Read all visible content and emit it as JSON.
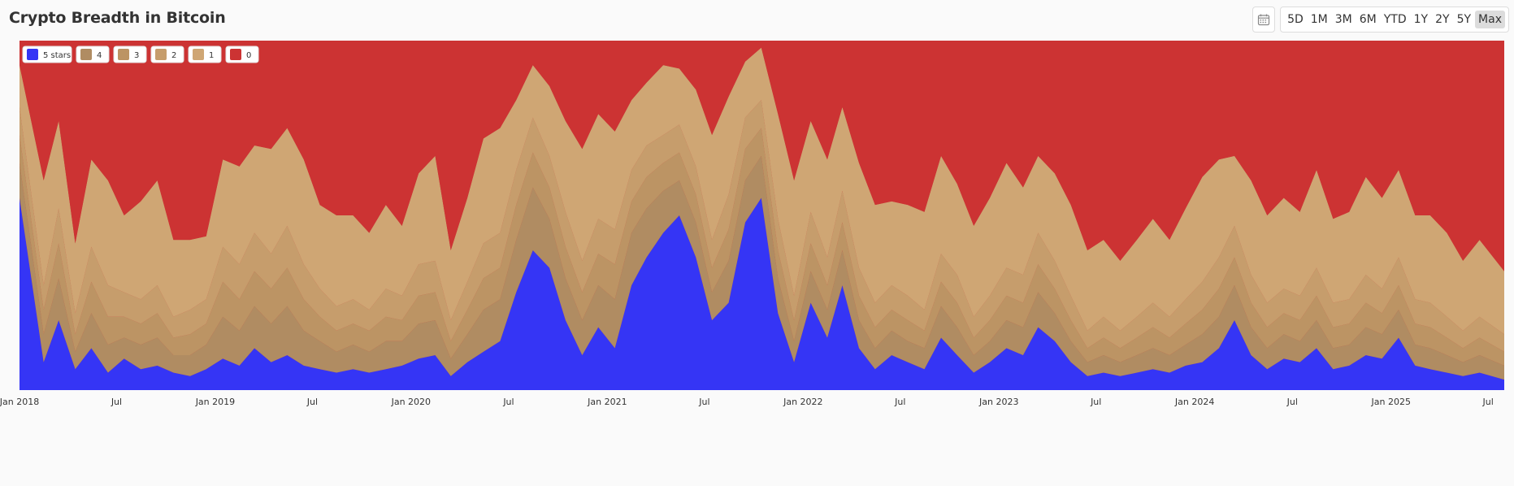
{
  "page": {
    "title": "Crypto Breadth in Bitcoin"
  },
  "toolbar": {
    "ranges": [
      "5D",
      "1M",
      "3M",
      "6M",
      "YTD",
      "1Y",
      "2Y",
      "5Y",
      "Max"
    ],
    "active": "Max",
    "icon": "calendar-icon"
  },
  "chart_data": {
    "type": "area",
    "stacked": true,
    "normalized": true,
    "title": "",
    "xlabel": "",
    "ylabel": "",
    "ylim": [
      0,
      100
    ],
    "xlim": [
      "2018-01-01",
      "2025-07-31"
    ],
    "grid": false,
    "legend_position": "top-left",
    "x_ticks": [
      {
        "date": "2018-01-01",
        "label": "Jan 2018"
      },
      {
        "date": "2018-07-01",
        "label": "Jul"
      },
      {
        "date": "2019-01-01",
        "label": "Jan 2019"
      },
      {
        "date": "2019-07-01",
        "label": "Jul"
      },
      {
        "date": "2020-01-01",
        "label": "Jan 2020"
      },
      {
        "date": "2020-07-01",
        "label": "Jul"
      },
      {
        "date": "2021-01-01",
        "label": "Jan 2021"
      },
      {
        "date": "2021-07-01",
        "label": "Jul"
      },
      {
        "date": "2022-01-01",
        "label": "Jan 2022"
      },
      {
        "date": "2022-07-01",
        "label": "Jul"
      },
      {
        "date": "2023-01-01",
        "label": "Jan 2023"
      },
      {
        "date": "2023-07-01",
        "label": "Jul"
      },
      {
        "date": "2024-01-01",
        "label": "Jan 2024"
      },
      {
        "date": "2024-07-01",
        "label": "Jul"
      },
      {
        "date": "2025-01-01",
        "label": "Jan 2025"
      },
      {
        "date": "2025-07-01",
        "label": "Jul"
      }
    ],
    "colors": {
      "5 stars": "#3535f5",
      "4": "#b08c62",
      "3": "#bc9464",
      "2": "#c69d6c",
      "1": "#cfa674",
      "0": "#cc3333"
    },
    "x": [
      "2018-01",
      "2018-02",
      "2018-03",
      "2018-04",
      "2018-05",
      "2018-06",
      "2018-07",
      "2018-08",
      "2018-09",
      "2018-10",
      "2018-11",
      "2018-12",
      "2019-01",
      "2019-02",
      "2019-03",
      "2019-04",
      "2019-05",
      "2019-06",
      "2019-07",
      "2019-08",
      "2019-09",
      "2019-10",
      "2019-11",
      "2019-12",
      "2020-01",
      "2020-02",
      "2020-03",
      "2020-04",
      "2020-05",
      "2020-06",
      "2020-07",
      "2020-08",
      "2020-09",
      "2020-10",
      "2020-11",
      "2020-12",
      "2021-01",
      "2021-02",
      "2021-03",
      "2021-04",
      "2021-05",
      "2021-06",
      "2021-07",
      "2021-08",
      "2021-09",
      "2021-10",
      "2021-11",
      "2021-12",
      "2022-01",
      "2022-02",
      "2022-03",
      "2022-04",
      "2022-05",
      "2022-06",
      "2022-07",
      "2022-08",
      "2022-09",
      "2022-10",
      "2022-11",
      "2022-12",
      "2023-01",
      "2023-02",
      "2023-03",
      "2023-04",
      "2023-05",
      "2023-06",
      "2023-07",
      "2023-08",
      "2023-09",
      "2023-10",
      "2023-11",
      "2023-12",
      "2024-01",
      "2024-02",
      "2024-03",
      "2024-04",
      "2024-05",
      "2024-06",
      "2024-07",
      "2024-08",
      "2024-09",
      "2024-10",
      "2024-11",
      "2024-12",
      "2025-01",
      "2025-02",
      "2025-03",
      "2025-04",
      "2025-05",
      "2025-06",
      "2025-07"
    ],
    "series": [
      {
        "name": "5 stars",
        "values": [
          55,
          8,
          20,
          6,
          12,
          5,
          9,
          6,
          7,
          5,
          4,
          6,
          9,
          7,
          12,
          8,
          10,
          7,
          6,
          5,
          6,
          5,
          6,
          7,
          9,
          10,
          4,
          8,
          11,
          14,
          28,
          40,
          35,
          20,
          10,
          18,
          12,
          30,
          38,
          45,
          50,
          38,
          20,
          25,
          48,
          55,
          22,
          8,
          25,
          15,
          30,
          12,
          6,
          10,
          8,
          6,
          15,
          10,
          5,
          8,
          12,
          10,
          18,
          14,
          8,
          4,
          5,
          4,
          5,
          6,
          5,
          7,
          8,
          12,
          20,
          10,
          6,
          9,
          8,
          12,
          6,
          7,
          10,
          9,
          15,
          7,
          6,
          5,
          4,
          5,
          3
        ]
      },
      {
        "name": "4",
        "values": [
          10,
          8,
          12,
          5,
          10,
          8,
          6,
          7,
          8,
          5,
          6,
          7,
          12,
          10,
          12,
          11,
          14,
          10,
          8,
          6,
          7,
          6,
          8,
          7,
          10,
          10,
          5,
          8,
          12,
          12,
          15,
          18,
          14,
          12,
          10,
          12,
          14,
          15,
          14,
          12,
          10,
          10,
          8,
          12,
          12,
          12,
          10,
          6,
          9,
          8,
          10,
          8,
          6,
          7,
          6,
          6,
          9,
          8,
          5,
          6,
          8,
          8,
          10,
          8,
          6,
          4,
          5,
          4,
          5,
          6,
          5,
          6,
          8,
          9,
          10,
          8,
          6,
          7,
          6,
          8,
          6,
          6,
          8,
          7,
          8,
          6,
          6,
          5,
          4,
          5,
          4
        ]
      },
      {
        "name": "3",
        "values": [
          8,
          7,
          10,
          5,
          9,
          8,
          6,
          6,
          7,
          5,
          6,
          6,
          10,
          9,
          10,
          10,
          11,
          9,
          7,
          6,
          6,
          6,
          7,
          6,
          8,
          8,
          5,
          7,
          9,
          9,
          10,
          10,
          9,
          9,
          8,
          9,
          10,
          9,
          9,
          8,
          8,
          8,
          7,
          9,
          9,
          8,
          8,
          6,
          8,
          7,
          8,
          7,
          6,
          6,
          6,
          5,
          7,
          7,
          5,
          6,
          7,
          7,
          8,
          7,
          6,
          4,
          5,
          4,
          5,
          6,
          5,
          6,
          7,
          8,
          8,
          7,
          6,
          6,
          6,
          7,
          6,
          6,
          7,
          6,
          7,
          6,
          6,
          5,
          4,
          5,
          4
        ]
      },
      {
        "name": "2",
        "values": [
          8,
          7,
          10,
          6,
          10,
          9,
          7,
          7,
          8,
          6,
          7,
          7,
          10,
          10,
          11,
          10,
          12,
          10,
          8,
          7,
          7,
          6,
          8,
          7,
          9,
          9,
          6,
          8,
          10,
          10,
          10,
          10,
          9,
          10,
          9,
          10,
          10,
          9,
          9,
          8,
          8,
          8,
          8,
          10,
          9,
          8,
          9,
          7,
          9,
          8,
          9,
          8,
          7,
          7,
          7,
          6,
          8,
          8,
          6,
          7,
          8,
          8,
          9,
          8,
          7,
          5,
          6,
          5,
          6,
          7,
          6,
          7,
          8,
          9,
          9,
          8,
          7,
          7,
          7,
          8,
          7,
          7,
          8,
          7,
          8,
          7,
          7,
          6,
          5,
          6,
          5
        ]
      },
      {
        "name": "1",
        "values": [
          12,
          30,
          25,
          20,
          25,
          30,
          22,
          28,
          30,
          22,
          20,
          18,
          25,
          28,
          25,
          30,
          28,
          30,
          24,
          26,
          24,
          22,
          24,
          20,
          26,
          30,
          20,
          24,
          30,
          30,
          20,
          15,
          20,
          26,
          32,
          30,
          28,
          20,
          18,
          20,
          16,
          22,
          30,
          28,
          16,
          15,
          30,
          33,
          26,
          28,
          24,
          30,
          28,
          24,
          26,
          28,
          28,
          26,
          26,
          28,
          30,
          25,
          22,
          25,
          26,
          23,
          22,
          20,
          22,
          24,
          22,
          26,
          30,
          28,
          20,
          27,
          25,
          26,
          24,
          28,
          24,
          25,
          28,
          26,
          25,
          24,
          25,
          24,
          20,
          22,
          18
        ]
      },
      {
        "name": "0",
        "values": [
          7,
          40,
          23,
          58,
          34,
          40,
          50,
          46,
          40,
          57,
          57,
          56,
          34,
          36,
          30,
          31,
          25,
          34,
          47,
          50,
          50,
          55,
          47,
          53,
          38,
          33,
          60,
          45,
          28,
          25,
          17,
          7,
          13,
          23,
          31,
          21,
          26,
          17,
          12,
          7,
          8,
          14,
          27,
          16,
          6,
          2,
          21,
          40,
          23,
          34,
          19,
          35,
          47,
          46,
          47,
          49,
          33,
          41,
          53,
          45,
          35,
          42,
          33,
          38,
          47,
          60,
          57,
          63,
          57,
          51,
          57,
          48,
          39,
          34,
          33,
          40,
          50,
          45,
          49,
          37,
          51,
          49,
          39,
          45,
          37,
          50,
          50,
          55,
          63,
          57,
          66
        ]
      }
    ]
  }
}
